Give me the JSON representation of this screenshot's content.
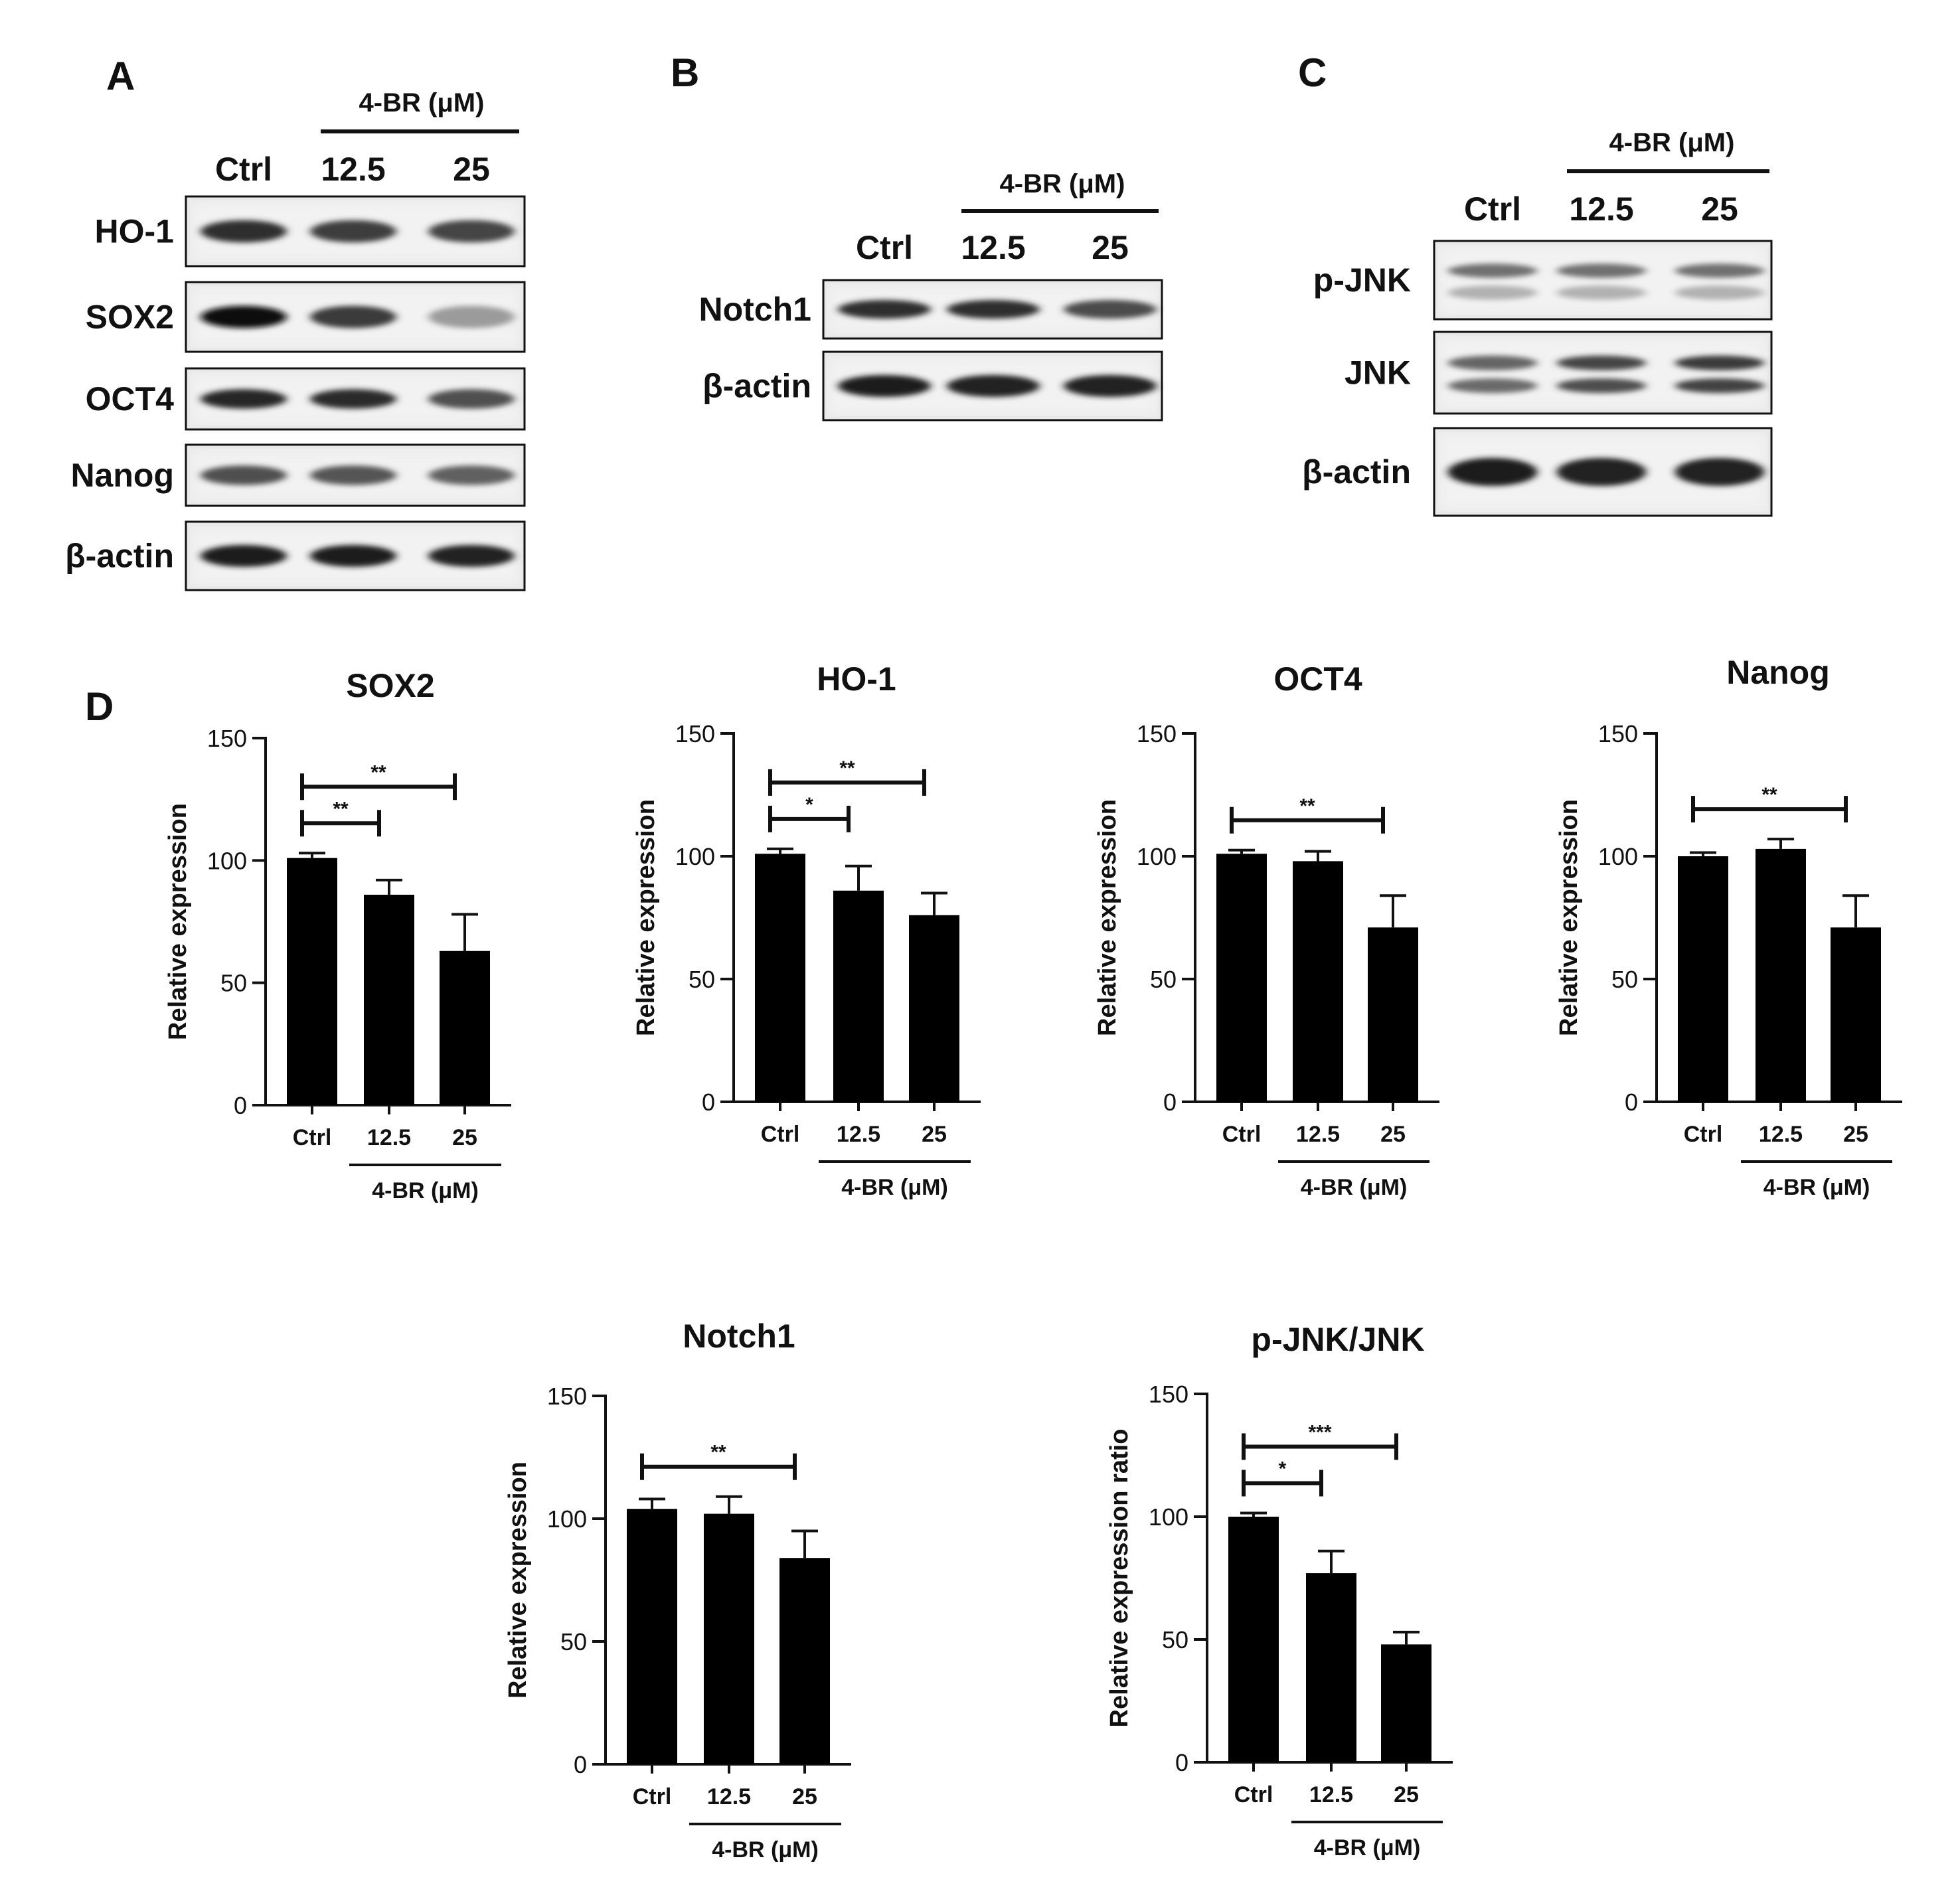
{
  "panels": {
    "A": {
      "letter": "A",
      "treatment": "4-BR (μM)",
      "lanes": [
        "Ctrl",
        "12.5",
        "25"
      ],
      "blots": [
        {
          "label": "HO-1",
          "bands": [
            0.85,
            0.78,
            0.75
          ]
        },
        {
          "label": "SOX2",
          "bands": [
            1.0,
            0.8,
            0.35
          ]
        },
        {
          "label": "OCT4",
          "bands": [
            0.9,
            0.88,
            0.7
          ]
        },
        {
          "label": "Nanog",
          "bands": [
            0.7,
            0.68,
            0.62
          ]
        },
        {
          "label": "β-actin",
          "bands": [
            0.95,
            0.95,
            0.92
          ]
        }
      ]
    },
    "B": {
      "letter": "B",
      "treatment": "4-BR (μM)",
      "lanes": [
        "Ctrl",
        "12.5",
        "25"
      ],
      "blots": [
        {
          "label": "Notch1",
          "bands": [
            0.85,
            0.85,
            0.72
          ]
        },
        {
          "label": "β-actin",
          "bands": [
            0.95,
            0.92,
            0.92
          ]
        }
      ]
    },
    "C": {
      "letter": "C",
      "treatment": "4-BR (μM)",
      "lanes": [
        "Ctrl",
        "12.5",
        "25"
      ],
      "blots": [
        {
          "label": "p-JNK",
          "bands": [
            0.55,
            0.55,
            0.55
          ]
        },
        {
          "label": "JNK",
          "bands": [
            0.6,
            0.75,
            0.8
          ]
        },
        {
          "label": "β-actin",
          "bands": [
            0.95,
            0.92,
            0.92
          ]
        }
      ]
    },
    "D": {
      "letter": "D"
    }
  },
  "chart_data": [
    {
      "type": "bar",
      "title": "SOX2",
      "ylabel": "Relative expression",
      "group_label": "4-BR (μM)",
      "categories": [
        "Ctrl",
        "12.5",
        "25"
      ],
      "values": [
        101,
        86,
        63
      ],
      "errors": [
        2,
        6,
        15
      ],
      "ylim": [
        0,
        150
      ],
      "yticks": [
        0,
        50,
        100,
        150
      ],
      "significance": [
        {
          "from": "Ctrl",
          "to": "12.5",
          "label": "**"
        },
        {
          "from": "Ctrl",
          "to": "25",
          "label": "**"
        }
      ]
    },
    {
      "type": "bar",
      "title": "HO-1",
      "ylabel": "Relative expression",
      "group_label": "4-BR (μM)",
      "categories": [
        "Ctrl",
        "12.5",
        "25"
      ],
      "values": [
        101,
        86,
        76
      ],
      "errors": [
        2,
        10,
        9
      ],
      "ylim": [
        0,
        150
      ],
      "yticks": [
        0,
        50,
        100,
        150
      ],
      "significance": [
        {
          "from": "Ctrl",
          "to": "12.5",
          "label": "*"
        },
        {
          "from": "Ctrl",
          "to": "25",
          "label": "**"
        }
      ]
    },
    {
      "type": "bar",
      "title": "OCT4",
      "ylabel": "Relative expression",
      "group_label": "4-BR (μM)",
      "categories": [
        "Ctrl",
        "12.5",
        "25"
      ],
      "values": [
        101,
        98,
        71
      ],
      "errors": [
        1.5,
        4,
        13
      ],
      "ylim": [
        0,
        150
      ],
      "yticks": [
        0,
        50,
        100,
        150
      ],
      "significance": [
        {
          "from": "Ctrl",
          "to": "25",
          "label": "**"
        }
      ]
    },
    {
      "type": "bar",
      "title": "Nanog",
      "ylabel": "Relative expression",
      "group_label": "4-BR (μM)",
      "categories": [
        "Ctrl",
        "12.5",
        "25"
      ],
      "values": [
        100,
        103,
        71
      ],
      "errors": [
        1.5,
        4,
        13
      ],
      "ylim": [
        0,
        150
      ],
      "yticks": [
        0,
        50,
        100,
        150
      ],
      "significance": [
        {
          "from": "Ctrl",
          "to": "25",
          "label": "**"
        }
      ]
    },
    {
      "type": "bar",
      "title": "Notch1",
      "ylabel": "Relative expression",
      "group_label": "4-BR (μM)",
      "categories": [
        "Ctrl",
        "12.5",
        "25"
      ],
      "values": [
        104,
        102,
        84
      ],
      "errors": [
        4,
        7,
        11
      ],
      "ylim": [
        0,
        150
      ],
      "yticks": [
        0,
        50,
        100,
        150
      ],
      "significance": [
        {
          "from": "Ctrl",
          "to": "25",
          "label": "**"
        }
      ]
    },
    {
      "type": "bar",
      "title": "p-JNK/JNK",
      "ylabel": "Relative expression ratio",
      "group_label": "4-BR (μM)",
      "categories": [
        "Ctrl",
        "12.5",
        "25"
      ],
      "values": [
        100,
        77,
        48
      ],
      "errors": [
        1.5,
        9,
        5
      ],
      "ylim": [
        0,
        150
      ],
      "yticks": [
        0,
        50,
        100,
        150
      ],
      "significance": [
        {
          "from": "Ctrl",
          "to": "12.5",
          "label": "*"
        },
        {
          "from": "Ctrl",
          "to": "25",
          "label": "***"
        }
      ]
    }
  ]
}
